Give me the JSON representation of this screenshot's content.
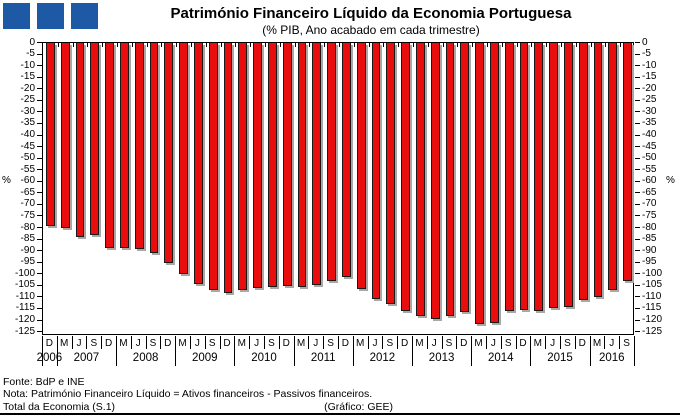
{
  "logo": {
    "color": "#1d59a5",
    "square_count": 3
  },
  "title": "Património Financeiro Líquido da Economia Portuguesa",
  "subtitle": "(% PIB, Ano acabado em cada trimestre)",
  "footer": {
    "line1": "Fonte: BdP e INE",
    "line2": "Nota: Património Financeiro Líquido = Ativos financeiros - Passivos financeiros.",
    "line3_left": "Total da Economia (S.1)",
    "line3_right": "(Gráfico: GEE)"
  },
  "chart_data": {
    "type": "bar",
    "title": "Património Financeiro Líquido da Economia Portuguesa",
    "subtitle": "(% PIB, Ano acabado em cada trimestre)",
    "series_name": "Património Financeiro Líquido (% PIB)",
    "unit_label": "%",
    "bar_color": "#e90d0d",
    "bar_border_color": "#1a1a1a",
    "shadow_color": "#a8a8a8",
    "y_axis": {
      "max": 0,
      "min_tick": -125,
      "plot_min": -126.7,
      "tick_step": -5,
      "unit_label_at": -60,
      "grid": false
    },
    "x_quarters": [
      "D",
      "M",
      "J",
      "S",
      "D",
      "M",
      "J",
      "S",
      "D",
      "M",
      "J",
      "S",
      "D",
      "M",
      "J",
      "S",
      "D",
      "M",
      "J",
      "S",
      "D",
      "M",
      "J",
      "S",
      "D",
      "M",
      "J",
      "S",
      "D",
      "M",
      "J",
      "S",
      "D",
      "M",
      "J",
      "S",
      "D",
      "M",
      "J",
      "S"
    ],
    "x_years": [
      {
        "label": "2006",
        "cells": 1
      },
      {
        "label": "2007",
        "cells": 4
      },
      {
        "label": "2008",
        "cells": 4
      },
      {
        "label": "2009",
        "cells": 4
      },
      {
        "label": "2010",
        "cells": 4
      },
      {
        "label": "2011",
        "cells": 4
      },
      {
        "label": "2012",
        "cells": 4
      },
      {
        "label": "2013",
        "cells": 4
      },
      {
        "label": "2014",
        "cells": 4
      },
      {
        "label": "2015",
        "cells": 4
      },
      {
        "label": "2016",
        "cells": 3
      }
    ],
    "values": [
      -79,
      -80,
      -84,
      -83,
      -88.5,
      -88.5,
      -89,
      -91,
      -95,
      -100,
      -104,
      -107,
      -108,
      -107,
      -106,
      -105.5,
      -105,
      -105.5,
      -104.5,
      -103,
      -101,
      -106.5,
      -110.5,
      -113,
      -116,
      -118,
      -119.5,
      -118,
      -116.5,
      -121.5,
      -121,
      -116,
      -115.5,
      -116,
      -114.5,
      -114,
      -111,
      -110,
      -107,
      -103
    ]
  }
}
